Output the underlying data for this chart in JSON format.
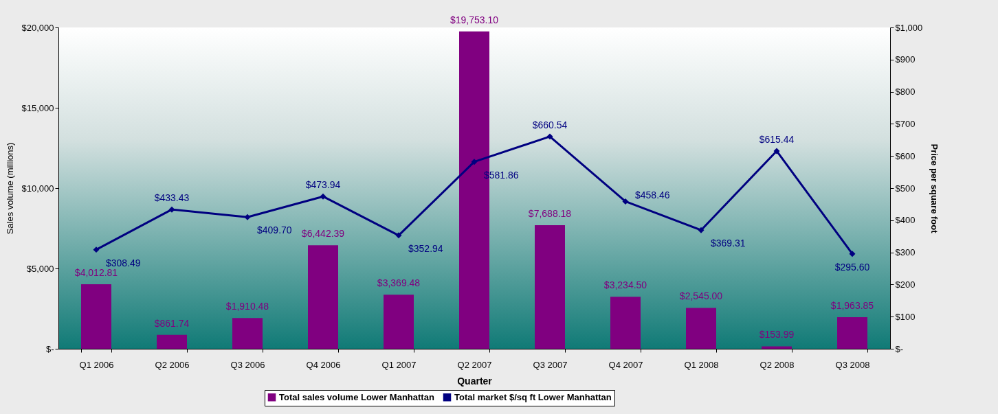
{
  "chart_data": {
    "type": "bar",
    "xlabel": "Quarter",
    "ylabel": "Sales volume (millions)",
    "y2label": "Price per square foot",
    "categories": [
      "Q1  2006",
      "Q2  2006",
      "Q3  2006",
      "Q4  2006",
      "Q1  2007",
      "Q2  2007",
      "Q3  2007",
      "Q4  2007",
      "Q1  2008",
      "Q2  2008",
      "Q3  2008"
    ],
    "series": [
      {
        "name": "Total sales volume Lower Manhattan",
        "color": "#800080",
        "values": [
          4012.81,
          861.74,
          1910.48,
          6442.39,
          3369.48,
          19753.1,
          7688.18,
          3234.5,
          2545.0,
          153.99,
          1963.85
        ],
        "value_labels": [
          "$4,012.81",
          "$861.74",
          "$1,910.48",
          "$6,442.39",
          "$3,369.48",
          "$19,753.10",
          "$7,688.18",
          "$3,234.50",
          "$2,545.00",
          "$153.99",
          "$1,963.85"
        ]
      },
      {
        "name": "Total market $/sq ft Lower Manhattan",
        "type": "line",
        "axis": "y2",
        "color": "#000080",
        "values": [
          308.49,
          433.43,
          409.7,
          473.94,
          352.94,
          581.86,
          660.54,
          458.46,
          369.31,
          615.44,
          295.6
        ],
        "value_labels": [
          "$308.49",
          "$433.43",
          "$409.70",
          "$473.94",
          "$352.94",
          "$581.86",
          "$660.54",
          "$458.46",
          "$369.31",
          "$615.44",
          "$295.60"
        ]
      }
    ],
    "ylim": [
      0,
      20000
    ],
    "yticks": [
      {
        "value": 0,
        "label": "$-"
      },
      {
        "value": 5000,
        "label": "$5,000"
      },
      {
        "value": 10000,
        "label": "$10,000"
      },
      {
        "value": 15000,
        "label": "$15,000"
      },
      {
        "value": 20000,
        "label": "$20,000"
      }
    ],
    "y2lim": [
      0,
      1000
    ],
    "y2ticks": [
      {
        "value": 0,
        "label": "$-"
      },
      {
        "value": 100,
        "label": "$100"
      },
      {
        "value": 200,
        "label": "$200"
      },
      {
        "value": 300,
        "label": "$300"
      },
      {
        "value": 400,
        "label": "$400"
      },
      {
        "value": 500,
        "label": "$500"
      },
      {
        "value": 600,
        "label": "$600"
      },
      {
        "value": 700,
        "label": "$700"
      },
      {
        "value": 800,
        "label": "$800"
      },
      {
        "value": 900,
        "label": "$900"
      },
      {
        "value": 1000,
        "label": "$1,000"
      }
    ],
    "marker": "diamond",
    "legend": "bottom"
  }
}
